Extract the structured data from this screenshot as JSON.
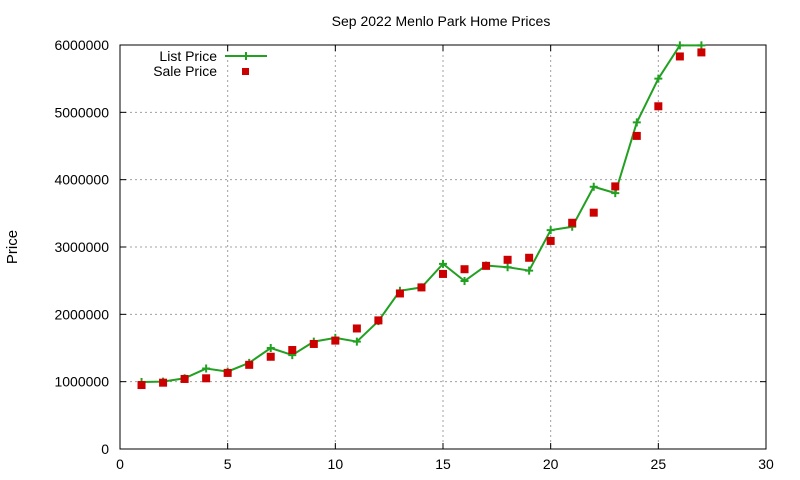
{
  "chart_data": {
    "type": "line",
    "title": "Sep 2022 Menlo Park Home Prices",
    "xlabel": "",
    "ylabel": "Price",
    "xlim": [
      0,
      30
    ],
    "ylim": [
      0,
      6000000
    ],
    "xticks": [
      0,
      5,
      10,
      15,
      20,
      25,
      30
    ],
    "yticks": [
      0,
      1000000,
      2000000,
      3000000,
      4000000,
      5000000,
      6000000
    ],
    "grid": true,
    "legend_position": "top-left",
    "series": [
      {
        "name": "List Price",
        "style": "line-with-plus-markers",
        "color": "#22a022",
        "x": [
          1,
          2,
          3,
          4,
          5,
          6,
          7,
          8,
          9,
          10,
          11,
          12,
          13,
          14,
          15,
          16,
          17,
          18,
          19,
          20,
          21,
          22,
          23,
          24,
          25,
          26,
          27
        ],
        "y": [
          995000,
          1000000,
          1050000,
          1195000,
          1150000,
          1280000,
          1500000,
          1395000,
          1595000,
          1650000,
          1595000,
          1900000,
          2350000,
          2400000,
          2750000,
          2495000,
          2725000,
          2700000,
          2650000,
          3250000,
          3300000,
          3895000,
          3800000,
          4850000,
          5500000,
          5995000,
          5995000
        ]
      },
      {
        "name": "Sale Price",
        "style": "square-markers",
        "color": "#cc0000",
        "x": [
          1,
          2,
          3,
          4,
          5,
          6,
          7,
          8,
          9,
          10,
          11,
          12,
          13,
          14,
          15,
          16,
          17,
          18,
          19,
          20,
          21,
          22,
          23,
          24,
          25,
          26,
          27
        ],
        "y": [
          950000,
          985000,
          1040000,
          1050000,
          1130000,
          1250000,
          1370000,
          1470000,
          1560000,
          1610000,
          1790000,
          1910000,
          2310000,
          2400000,
          2600000,
          2670000,
          2720000,
          2810000,
          2840000,
          3090000,
          3360000,
          3510000,
          3900000,
          4650000,
          5090000,
          5830000,
          5890000
        ]
      }
    ]
  }
}
